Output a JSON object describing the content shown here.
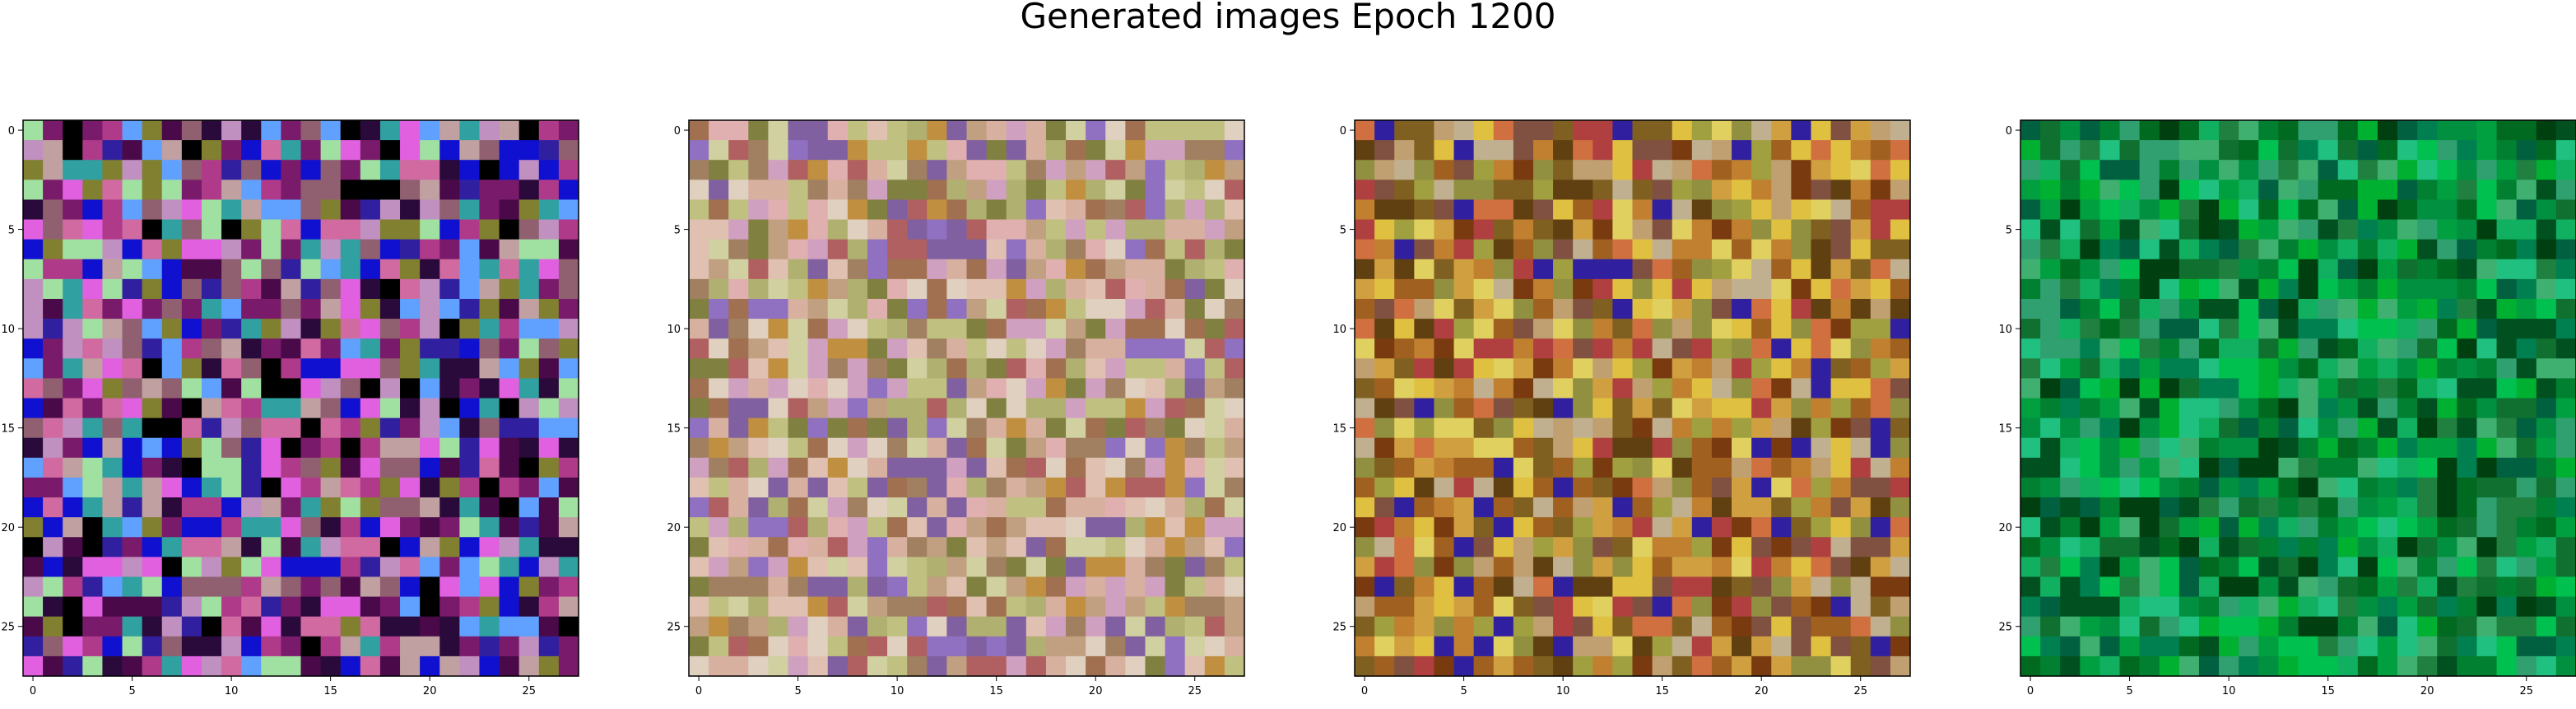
{
  "figure": {
    "title": "Generated images Epoch 1200"
  },
  "chart_data": [
    {
      "type": "heatmap",
      "palette": "magenta-purple-blue",
      "grid_size": [
        28,
        28
      ],
      "xlim": [
        -0.5,
        27.5
      ],
      "ylim": [
        27.5,
        -0.5
      ],
      "xticks": [
        0,
        5,
        10,
        15,
        20,
        25
      ],
      "yticks": [
        0,
        5,
        10,
        15,
        20,
        25
      ],
      "xtick_labels": [
        "0",
        "5",
        "10",
        "15",
        "20",
        "25"
      ],
      "ytick_labels": [
        "0",
        "5",
        "10",
        "15",
        "20",
        "25"
      ]
    },
    {
      "type": "heatmap",
      "palette": "pastel-tan-olive",
      "grid_size": [
        28,
        28
      ],
      "xlim": [
        -0.5,
        27.5
      ],
      "ylim": [
        27.5,
        -0.5
      ],
      "xticks": [
        0,
        5,
        10,
        15,
        20,
        25
      ],
      "yticks": [
        0,
        5,
        10,
        15,
        20,
        25
      ],
      "xtick_labels": [
        "0",
        "5",
        "10",
        "15",
        "20",
        "25"
      ],
      "ytick_labels": [
        "0",
        "5",
        "10",
        "15",
        "20",
        "25"
      ]
    },
    {
      "type": "heatmap",
      "palette": "ochre-yellow-brown",
      "grid_size": [
        28,
        28
      ],
      "xlim": [
        -0.5,
        27.5
      ],
      "ylim": [
        27.5,
        -0.5
      ],
      "xticks": [
        0,
        5,
        10,
        15,
        20,
        25
      ],
      "yticks": [
        0,
        5,
        10,
        15,
        20,
        25
      ],
      "xtick_labels": [
        "0",
        "5",
        "10",
        "15",
        "20",
        "25"
      ],
      "ytick_labels": [
        "0",
        "5",
        "10",
        "15",
        "20",
        "25"
      ]
    },
    {
      "type": "heatmap",
      "palette": "green",
      "grid_size": [
        28,
        28
      ],
      "xlim": [
        -0.5,
        27.5
      ],
      "ylim": [
        27.5,
        -0.5
      ],
      "xticks": [
        0,
        5,
        10,
        15,
        20,
        25
      ],
      "yticks": [
        0,
        5,
        10,
        15,
        20,
        25
      ],
      "xtick_labels": [
        "0",
        "5",
        "10",
        "15",
        "20",
        "25"
      ],
      "ytick_labels": [
        "0",
        "5",
        "10",
        "15",
        "20",
        "25"
      ]
    }
  ]
}
